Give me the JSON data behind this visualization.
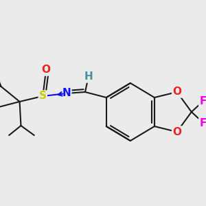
{
  "background_color": "#ebebeb",
  "atom_colors": {
    "C": "#1a1a1a",
    "H": "#4a8fa0",
    "N": "#1010ee",
    "O": "#ee2222",
    "S": "#cccc00",
    "F": "#ee00ee"
  },
  "bond_color": "#1a1a1a",
  "bond_width": 1.5,
  "font_size": 11,
  "figsize": [
    3.0,
    3.0
  ],
  "dpi": 100
}
